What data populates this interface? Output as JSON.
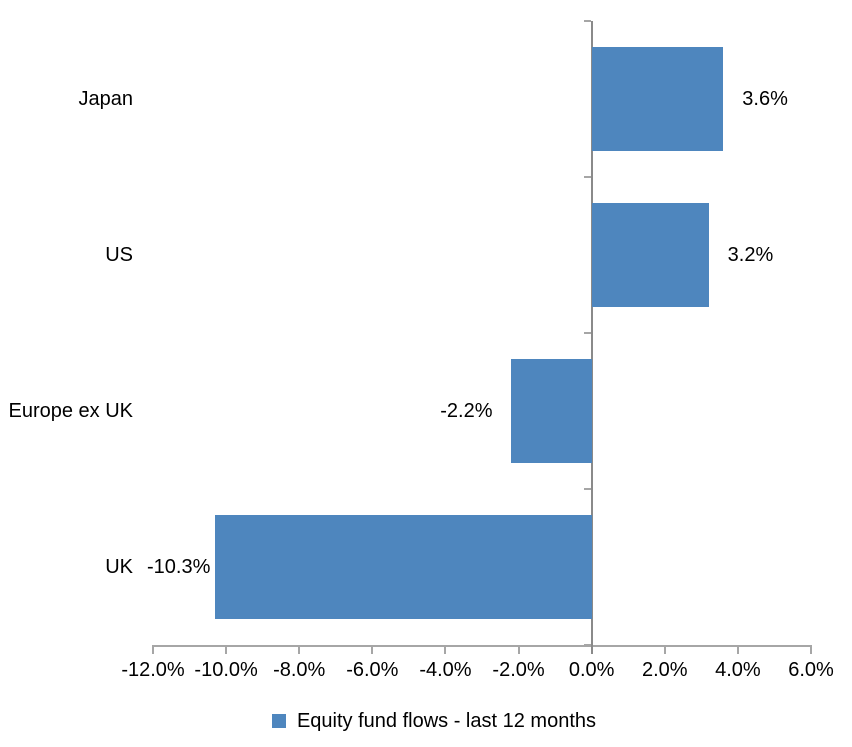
{
  "chart_data": {
    "type": "bar",
    "orientation": "horizontal",
    "title": "",
    "xlabel": "",
    "ylabel": "",
    "categories": [
      "Japan",
      "US",
      "Europe ex UK",
      "UK"
    ],
    "series": [
      {
        "name": "Equity fund flows - last 12 months",
        "values": [
          3.6,
          3.2,
          -2.2,
          -10.3
        ],
        "data_labels": [
          "3.6%",
          "3.2%",
          "-2.2%",
          "-10.3%"
        ]
      }
    ],
    "xlim": [
      -12,
      6
    ],
    "x_ticks": [
      -12,
      -10,
      -8,
      -6,
      -4,
      -2,
      0,
      2,
      4,
      6
    ],
    "x_tick_labels": [
      "-12.0%",
      "-10.0%",
      "-8.0%",
      "-6.0%",
      "-4.0%",
      "-2.0%",
      "0.0%",
      "2.0%",
      "4.0%",
      "6.0%"
    ],
    "grid": false,
    "legend": {
      "position": "bottom",
      "label": "Equity fund flows - last 12 months"
    },
    "colors": {
      "bar": "#4E86BE",
      "category_axis_line": "#8a8a8a",
      "value_axis_line": "#a6a6a6",
      "tick": "#a6a6a6",
      "text": "#000000",
      "background": "#ffffff"
    }
  }
}
